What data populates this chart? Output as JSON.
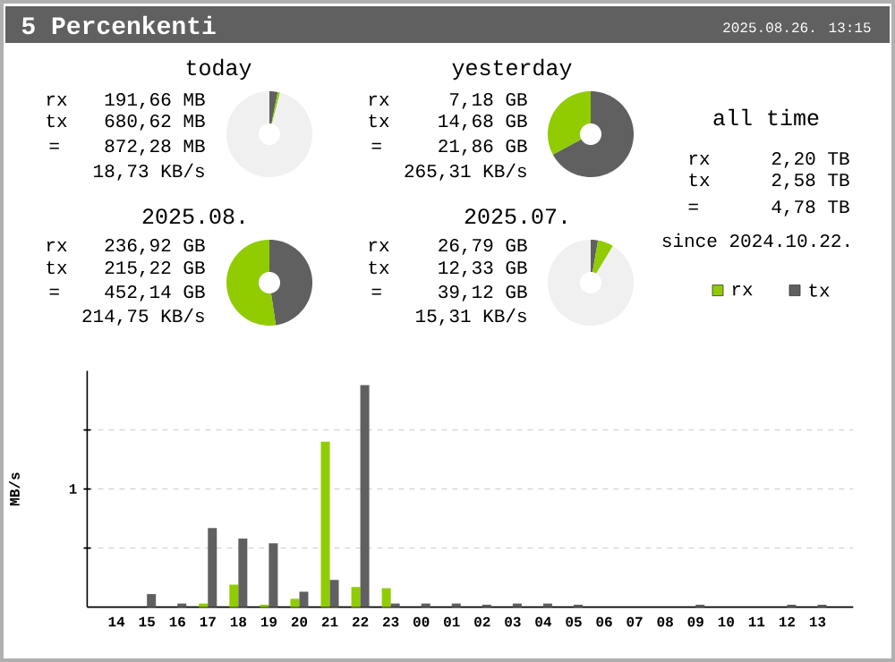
{
  "chart_data": [
    {
      "type": "other",
      "title": "5 Percenkenti",
      "annotations": [
        "2025.08.26. 13:15"
      ]
    },
    {
      "type": "donut",
      "title": "today",
      "categories": [
        null,
        null,
        null
      ],
      "values": [
        3.11,
        0.88,
        96.01
      ],
      "colors": [
        "#606060",
        "#90cc00",
        "#f0f0f0"
      ],
      "annotations": [
        "rx",
        "191,66 MB",
        "tx",
        "680,62 MB",
        "=",
        "872,28 MB",
        "18,73 KB/s"
      ]
    },
    {
      "type": "donut",
      "title": "yesterday",
      "categories": [
        null,
        null
      ],
      "values": [
        67.15,
        32.85
      ],
      "colors": [
        "#606060",
        "#90cc00"
      ],
      "annotations": [
        "rx",
        "7,18 GB",
        "tx",
        "14,68 GB",
        "=",
        "21,86 GB",
        "265,31 KB/s"
      ]
    },
    {
      "type": "other",
      "title": "all time",
      "annotations": [
        "rx",
        "2,20 TB",
        "tx",
        "2,58 TB",
        "=",
        "4,78 TB",
        "since 2024.10.22."
      ]
    },
    {
      "type": "donut",
      "title": "2025.08.",
      "categories": [
        null,
        null
      ],
      "values": [
        47.6,
        52.4
      ],
      "colors": [
        "#606060",
        "#90cc00"
      ],
      "annotations": [
        "rx",
        "236,92 GB",
        "tx",
        "215,22 GB",
        "=",
        "452,14 GB",
        "214,75 KB/s"
      ]
    },
    {
      "type": "donut",
      "title": "2025.07.",
      "categories": [
        null,
        null,
        null
      ],
      "values": [
        2.73,
        5.93,
        91.34
      ],
      "colors": [
        "#606060",
        "#90cc00",
        "#f0f0f0"
      ],
      "annotations": [
        "rx",
        "26,79 GB",
        "tx",
        "12,33 GB",
        "=",
        "39,12 GB",
        "15,31 KB/s"
      ]
    },
    {
      "type": "bar",
      "ylabel": "MB/s",
      "categories": [
        "14",
        "15",
        "16",
        "17",
        "18",
        "19",
        "20",
        "21",
        "22",
        "23",
        "00",
        "01",
        "02",
        "03",
        "04",
        "05",
        "06",
        "07",
        "08",
        "09",
        "10",
        "11",
        "12",
        "13"
      ],
      "ylim": [
        0,
        2.0
      ],
      "yticks": [
        {
          "value": 0.5,
          "label": null
        },
        1,
        {
          "value": 1.5,
          "label": null
        }
      ],
      "grid": "y",
      "legend": "top right",
      "series": [
        {
          "name": "rx",
          "color": "#90cc00",
          "values": [
            0,
            0,
            0,
            0.03,
            0.19,
            0.02,
            0.07,
            1.4,
            0.17,
            0.16,
            0,
            0,
            0,
            0,
            0,
            0,
            0,
            0,
            0,
            0,
            0,
            0,
            0,
            0
          ]
        },
        {
          "name": "tx",
          "color": "#606060",
          "values": [
            0,
            0.11,
            0.03,
            0.67,
            0.58,
            0.54,
            0.13,
            0.23,
            1.88,
            0.03,
            0.03,
            0.03,
            0.02,
            0.03,
            0.03,
            0.02,
            0,
            0,
            0,
            0.02,
            0,
            0,
            0.02,
            0.02
          ]
        }
      ]
    }
  ]
}
